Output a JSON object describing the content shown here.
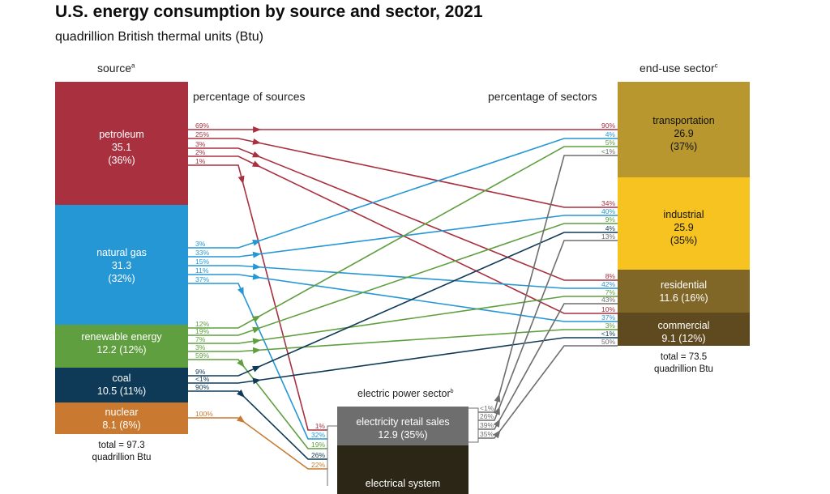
{
  "title": "U.S. energy consumption by source and sector, 2021",
  "subtitle": "quadrillion British thermal units (Btu)",
  "source_heading": "source",
  "source_sup": "a",
  "sector_heading": "end-use sector",
  "sector_sup": "c",
  "pct_sources_heading": "percentage of sources",
  "pct_sectors_heading": "percentage of sectors",
  "sources": [
    {
      "id": "petroleum",
      "name": "petroleum",
      "value": "35.1",
      "share": "(36%)",
      "color": "#a8303f"
    },
    {
      "id": "natural-gas",
      "name": "natural gas",
      "value": "31.3",
      "share": "(32%)",
      "color": "#2597d4"
    },
    {
      "id": "renewable",
      "name": "renewable energy",
      "value": "12.2 (12%)",
      "color": "#5f9f3f"
    },
    {
      "id": "coal",
      "name": "coal",
      "value": "10.5 (11%)",
      "color": "#0f3a57"
    },
    {
      "id": "nuclear",
      "name": "nuclear",
      "value": "8.1 (8%)",
      "color": "#c97a30"
    }
  ],
  "source_total": {
    "line1": "total = 97.3",
    "line2": "quadrillion Btu"
  },
  "sectors": [
    {
      "id": "transportation",
      "name": "transportation",
      "value": "26.9",
      "share": "(37%)",
      "color": "#b8982e"
    },
    {
      "id": "industrial",
      "name": "industrial",
      "value": "25.9",
      "share": "(35%)",
      "color": "#f6c321"
    },
    {
      "id": "residential",
      "name": "residential",
      "value": "11.6 (16%)",
      "color": "#806627"
    },
    {
      "id": "commercial",
      "name": "commercial",
      "value": "9.1 (12%)",
      "color": "#5f4a1f"
    }
  ],
  "sector_total": {
    "line1": "total = 73.5",
    "line2": "quadrillion Btu"
  },
  "electric": {
    "heading": "electric power sector",
    "heading_sup": "b",
    "retail_label": "electricity retail sales",
    "retail_value": "12.9 (35%)",
    "retail_color": "#6e6e6e",
    "losses_label": "electrical system",
    "losses_color": "#2b2616"
  },
  "flows": [
    {
      "from": "petroleum",
      "to": "transportation",
      "src_pct": "69%",
      "dst_pct": "90%",
      "color": "#a8303f"
    },
    {
      "from": "petroleum",
      "to": "industrial",
      "src_pct": "25%",
      "dst_pct": "34%",
      "color": "#a8303f"
    },
    {
      "from": "petroleum",
      "to": "residential",
      "src_pct": "3%",
      "dst_pct": "8%",
      "color": "#a8303f"
    },
    {
      "from": "petroleum",
      "to": "commercial",
      "src_pct": "2%",
      "dst_pct": "10%",
      "color": "#a8303f"
    },
    {
      "from": "petroleum",
      "to": "electric",
      "src_pct": "1%",
      "dst_pct": "1%",
      "color": "#a8303f"
    },
    {
      "from": "natural-gas",
      "to": "transportation",
      "src_pct": "3%",
      "dst_pct": "4%",
      "color": "#2597d4"
    },
    {
      "from": "natural-gas",
      "to": "industrial",
      "src_pct": "33%",
      "dst_pct": "40%",
      "color": "#2597d4"
    },
    {
      "from": "natural-gas",
      "to": "residential",
      "src_pct": "15%",
      "dst_pct": "42%",
      "color": "#2597d4"
    },
    {
      "from": "natural-gas",
      "to": "commercial",
      "src_pct": "11%",
      "dst_pct": "37%",
      "color": "#2597d4"
    },
    {
      "from": "natural-gas",
      "to": "electric",
      "src_pct": "37%",
      "dst_pct": "32%",
      "color": "#2597d4"
    },
    {
      "from": "renewable",
      "to": "transportation",
      "src_pct": "12%",
      "dst_pct": "5%",
      "color": "#5f9f3f"
    },
    {
      "from": "renewable",
      "to": "industrial",
      "src_pct": "19%",
      "dst_pct": "9%",
      "color": "#5f9f3f"
    },
    {
      "from": "renewable",
      "to": "residential",
      "src_pct": "7%",
      "dst_pct": "7%",
      "color": "#5f9f3f"
    },
    {
      "from": "renewable",
      "to": "commercial",
      "src_pct": "3%",
      "dst_pct": "3%",
      "color": "#5f9f3f"
    },
    {
      "from": "renewable",
      "to": "electric",
      "src_pct": "59%",
      "dst_pct": "19%",
      "color": "#5f9f3f"
    },
    {
      "from": "coal",
      "to": "industrial",
      "src_pct": "9%",
      "dst_pct": "4%",
      "color": "#0f3a57"
    },
    {
      "from": "coal",
      "to": "commercial",
      "src_pct": "<1%",
      "dst_pct": "<1%",
      "color": "#0f3a57"
    },
    {
      "from": "coal",
      "to": "electric",
      "src_pct": "90%",
      "dst_pct": "26%",
      "color": "#0f3a57"
    },
    {
      "from": "nuclear",
      "to": "electric",
      "src_pct": "100%",
      "dst_pct": "22%",
      "color": "#c97a30"
    },
    {
      "from": "electric",
      "to": "transportation",
      "src_pct": "<1%",
      "dst_pct": "<1%",
      "color": "#6e6e6e"
    },
    {
      "from": "electric",
      "to": "industrial",
      "src_pct": "26%",
      "dst_pct": "13%",
      "color": "#6e6e6e"
    },
    {
      "from": "electric",
      "to": "residential",
      "src_pct": "39%",
      "dst_pct": "43%",
      "color": "#6e6e6e"
    },
    {
      "from": "electric",
      "to": "commercial",
      "src_pct": "35%",
      "dst_pct": "50%",
      "color": "#6e6e6e"
    }
  ]
}
